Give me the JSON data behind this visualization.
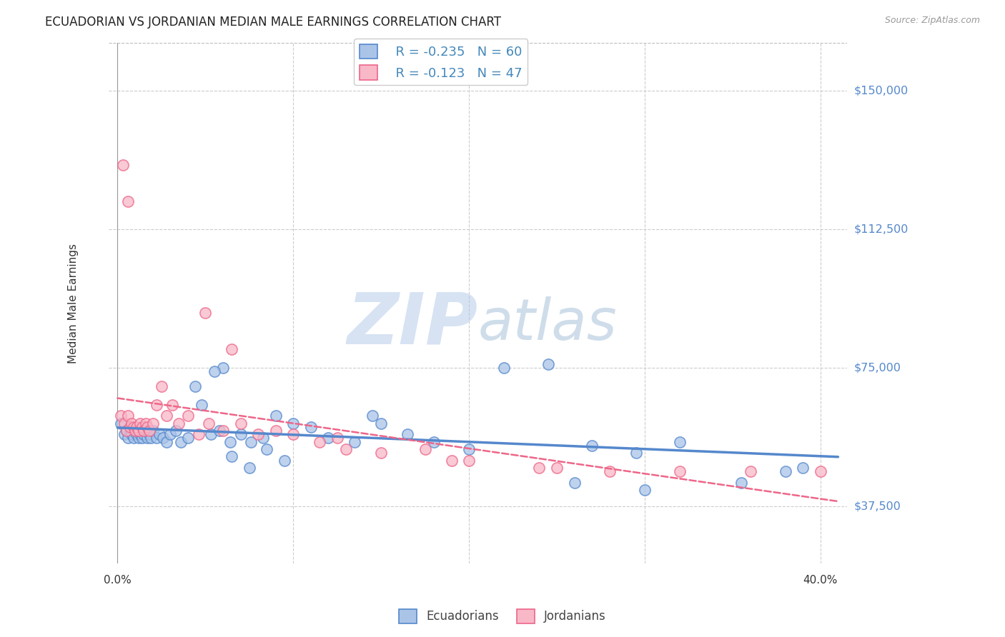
{
  "title": "ECUADORIAN VS JORDANIAN MEDIAN MALE EARNINGS CORRELATION CHART",
  "source": "Source: ZipAtlas.com",
  "ylabel": "Median Male Earnings",
  "ytick_labels": [
    "$37,500",
    "$75,000",
    "$112,500",
    "$150,000"
  ],
  "ytick_values": [
    37500,
    75000,
    112500,
    150000
  ],
  "ymin": 22000,
  "ymax": 163000,
  "xmin": -0.005,
  "xmax": 0.415,
  "background_color": "#ffffff",
  "grid_color": "#cccccc",
  "blue_color": "#5588cc",
  "blue_fill": "#aac4e8",
  "pink_color": "#ee6688",
  "pink_fill": "#f8b8c8",
  "legend_R1": "-0.235",
  "legend_N1": "60",
  "legend_R2": "-0.123",
  "legend_N2": "47",
  "blue_scatter_x": [
    0.002,
    0.004,
    0.005,
    0.006,
    0.007,
    0.008,
    0.009,
    0.01,
    0.011,
    0.012,
    0.013,
    0.014,
    0.015,
    0.016,
    0.017,
    0.018,
    0.019,
    0.02,
    0.022,
    0.024,
    0.026,
    0.028,
    0.03,
    0.033,
    0.036,
    0.04,
    0.044,
    0.048,
    0.053,
    0.058,
    0.064,
    0.07,
    0.076,
    0.083,
    0.09,
    0.1,
    0.11,
    0.12,
    0.135,
    0.15,
    0.165,
    0.18,
    0.2,
    0.22,
    0.245,
    0.27,
    0.295,
    0.32,
    0.355,
    0.39,
    0.06,
    0.055,
    0.065,
    0.075,
    0.085,
    0.095,
    0.145,
    0.26,
    0.3,
    0.38
  ],
  "blue_scatter_y": [
    60000,
    57000,
    58000,
    56000,
    58000,
    57000,
    56000,
    58000,
    57000,
    56000,
    57000,
    56000,
    57000,
    58000,
    56000,
    57000,
    56000,
    58000,
    56000,
    57000,
    56000,
    55000,
    57000,
    58000,
    55000,
    56000,
    70000,
    65000,
    57000,
    58000,
    55000,
    57000,
    55000,
    56000,
    62000,
    60000,
    59000,
    56000,
    55000,
    60000,
    57000,
    55000,
    53000,
    75000,
    76000,
    54000,
    52000,
    55000,
    44000,
    48000,
    75000,
    74000,
    51000,
    48000,
    53000,
    50000,
    62000,
    44000,
    42000,
    47000
  ],
  "pink_scatter_x": [
    0.002,
    0.004,
    0.005,
    0.006,
    0.007,
    0.008,
    0.009,
    0.01,
    0.011,
    0.012,
    0.013,
    0.014,
    0.015,
    0.016,
    0.017,
    0.018,
    0.02,
    0.022,
    0.025,
    0.028,
    0.031,
    0.035,
    0.04,
    0.046,
    0.052,
    0.06,
    0.07,
    0.08,
    0.09,
    0.1,
    0.115,
    0.13,
    0.15,
    0.175,
    0.2,
    0.24,
    0.28,
    0.32,
    0.36,
    0.4,
    0.003,
    0.006,
    0.05,
    0.065,
    0.125,
    0.19,
    0.25
  ],
  "pink_scatter_y": [
    62000,
    60000,
    58000,
    62000,
    59000,
    60000,
    59000,
    58000,
    59000,
    58000,
    60000,
    59000,
    58000,
    60000,
    59000,
    58000,
    60000,
    65000,
    70000,
    62000,
    65000,
    60000,
    62000,
    57000,
    60000,
    58000,
    60000,
    57000,
    58000,
    57000,
    55000,
    53000,
    52000,
    53000,
    50000,
    48000,
    47000,
    47000,
    47000,
    47000,
    130000,
    120000,
    90000,
    80000,
    56000,
    50000,
    48000
  ]
}
